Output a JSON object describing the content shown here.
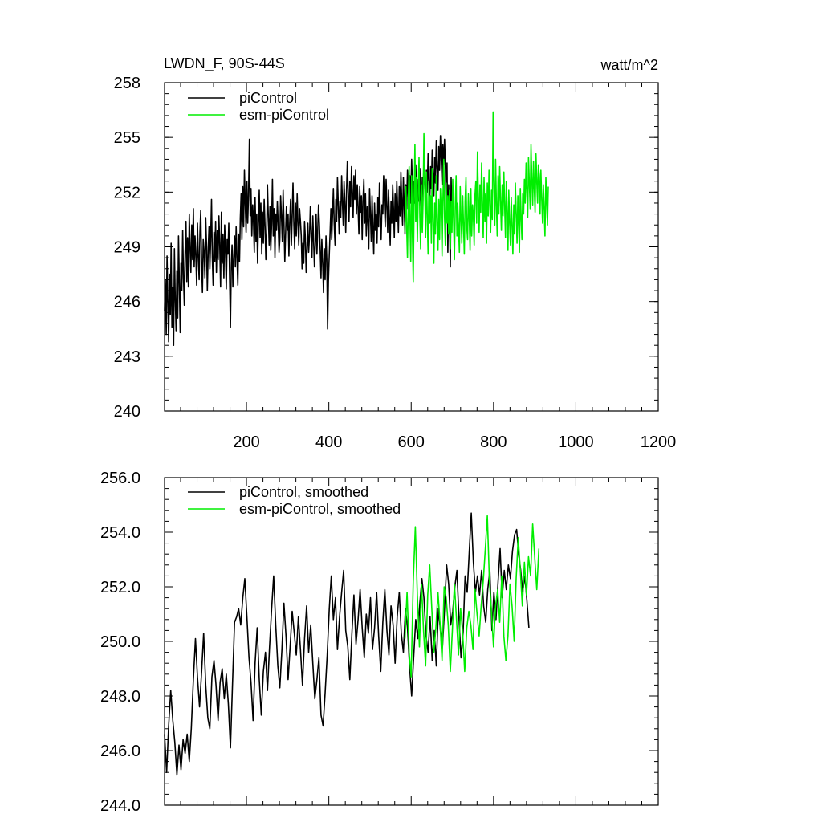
{
  "colors": {
    "piControl": "#000000",
    "esm": "#00ee00"
  },
  "chart_data": [
    {
      "type": "line",
      "title": "LWDN_F, 90S-44S",
      "units": "watt/m^2",
      "xlabel": "",
      "ylabel": "",
      "xlim": [
        1,
        1200
      ],
      "ylim": [
        240,
        258
      ],
      "yticks": [
        240,
        243,
        246,
        249,
        252,
        255,
        258
      ],
      "ytick_labels": [
        "240",
        "243",
        "246",
        "249",
        "252",
        "255",
        "258"
      ],
      "xticks": [
        200,
        400,
        600,
        800,
        1000,
        1200
      ],
      "xtick_labels": [
        "200",
        "400",
        "600",
        "800",
        "1000",
        "1200"
      ],
      "legend_position": "top-left",
      "series": [
        {
          "name": "piControl",
          "color_key": "piControl",
          "x_start": 1,
          "x_step": 2,
          "values": [
            245.5,
            247.2,
            244.2,
            248.5,
            246.1,
            243.8,
            247.5,
            245.3,
            249.2,
            244.6,
            246.8,
            243.6,
            248.9,
            246.2,
            244.4,
            247.7,
            245.1,
            249.6,
            246.9,
            244.3,
            248.1,
            246.6,
            249.9,
            247.3,
            245.8,
            248.7,
            250.4,
            247.1,
            249.5,
            246.8,
            250.8,
            248.9,
            247.6,
            250.2,
            248.3,
            251.1,
            247.9,
            249.6,
            248.5,
            246.9,
            250.3,
            248.4,
            247.2,
            249.8,
            251.0,
            248.1,
            246.5,
            249.4,
            248.8,
            247.3,
            250.6,
            249.1,
            246.6,
            248.9,
            250.1,
            247.8,
            249.3,
            251.6,
            248.4,
            246.9,
            249.8,
            248.2,
            250.4,
            247.6,
            249.9,
            248.3,
            250.7,
            249.2,
            246.8,
            250.9,
            248.1,
            249.7,
            247.3,
            250.2,
            248.9,
            246.7,
            249.4,
            248.6,
            250.3,
            247.4,
            244.6,
            247.9,
            249.1,
            246.8,
            248.4,
            249.6,
            247.9,
            250.1,
            248.3,
            246.9,
            249.7,
            248.2,
            250.6,
            251.9,
            249.4,
            252.3,
            250.1,
            253.2,
            251.4,
            249.8,
            252.6,
            250.3,
            251.8,
            254.9,
            250.7,
            252.2,
            249.6,
            251.3,
            250.4,
            248.7,
            251.7,
            249.3,
            250.8,
            248.1,
            250.2,
            252.1,
            249.5,
            251.4,
            248.6,
            250.9,
            249.2,
            251.6,
            250.1,
            248.3,
            249.8,
            252.4,
            250.6,
            249.1,
            251.2,
            248.8,
            250.3,
            252.7,
            249.6,
            251.1,
            248.4,
            250.8,
            249.9,
            251.5,
            250.2,
            248.7,
            249.4,
            251.8,
            250.6,
            249.3,
            252.1,
            250.4,
            248.2,
            249.7,
            251.2,
            249.9,
            250.8,
            248.5,
            250.3,
            251.6,
            249.1,
            250.7,
            252.5,
            250.2,
            248.9,
            251.4,
            249.6,
            251.9,
            250.3,
            249.1,
            251.1,
            250.4,
            249.6,
            247.8,
            249.2,
            248.1,
            250.4,
            249.5,
            247.6,
            248.9,
            250.3,
            248.7,
            249.6,
            251.2,
            249.8,
            248.4,
            250.7,
            249.3,
            247.9,
            249.1,
            250.8,
            248.6,
            249.9,
            251.3,
            250.2,
            248.8,
            247.3,
            249.4,
            248.1,
            246.5,
            248.9,
            247.2,
            249.6,
            248.3,
            244.5,
            247.1,
            248.6,
            249.8,
            251.1,
            249.4,
            250.8,
            252.2,
            250.3,
            249.1,
            251.6,
            250.4,
            252.8,
            251.2,
            249.7,
            251.5,
            250.6,
            252.9,
            251.4,
            250.2,
            252.6,
            251.3,
            249.8,
            252.1,
            253.7,
            251.8,
            250.4,
            252.6,
            251.2,
            253.4,
            251.9,
            250.6,
            252.9,
            251.6,
            253.2,
            250.8,
            252.4,
            251.1,
            249.7,
            252.3,
            250.9,
            251.8,
            249.4,
            251.5,
            252.7,
            250.3,
            251.9,
            249.6,
            251.2,
            250.4,
            248.9,
            252.2,
            250.7,
            249.3,
            251.8,
            250.2,
            248.6,
            251.4,
            249.9,
            250.8,
            249.2,
            251.7,
            250.1,
            252.5,
            250.6,
            249.4,
            251.3,
            250.8,
            252.9,
            251.4,
            250.1,
            252.7,
            251.2,
            249.8,
            252.1,
            250.6,
            249.1,
            251.5,
            250.3,
            252.4,
            251.1,
            249.5,
            251.9,
            250.4,
            252.6,
            251.2,
            249.8,
            252.3,
            250.7,
            253.1,
            251.6,
            250.2,
            252.8,
            251.3,
            249.7,
            252.4,
            251.1,
            253.2,
            251.8,
            250.5,
            252.9,
            251.4,
            253.8,
            252.2,
            250.9,
            252.6,
            251.4,
            253.5,
            252.1,
            250.8,
            252.7,
            251.5,
            253.3,
            252.0,
            250.6,
            252.8,
            251.9,
            253.6,
            252.4,
            251.1,
            253.2,
            252.0,
            254.1,
            252.6,
            251.3,
            253.4,
            252.2,
            254.3,
            253.1,
            251.8,
            253.9,
            252.5,
            254.8,
            253.3,
            252.1,
            254.5,
            253.2,
            255.1,
            253.8,
            252.4,
            254.6,
            253.5,
            254.9,
            253.4,
            251.2,
            253.6,
            248.7,
            252.4,
            250.9,
            247.9,
            252.8,
            250.3
          ]
        },
        {
          "name": "esm-piControl",
          "color_key": "esm",
          "x_start": 585,
          "x_step": 2,
          "values": [
            249.8,
            252.3,
            250.1,
            248.4,
            251.7,
            253.4,
            250.6,
            248.2,
            252.9,
            249.6,
            247.1,
            251.2,
            254.6,
            250.4,
            252.8,
            249.3,
            251.9,
            253.9,
            250.7,
            248.9,
            252.4,
            249.8,
            251.6,
            255.2,
            252.1,
            249.5,
            253.1,
            250.8,
            248.6,
            252.6,
            250.3,
            251.8,
            249.2,
            253.3,
            250.5,
            248.1,
            251.4,
            249.7,
            252.9,
            250.2,
            248.8,
            251.6,
            249.4,
            252.2,
            250.9,
            248.5,
            251.3,
            253.8,
            250.6,
            249.1,
            252.5,
            250.3,
            251.8,
            249.7,
            252.1,
            248.9,
            251.5,
            249.8,
            252.7,
            250.4,
            248.3,
            251.1,
            252.9,
            249.6,
            251.4,
            250.1,
            248.7,
            252.3,
            250.6,
            249.2,
            251.8,
            250.3,
            248.6,
            251.5,
            252.8,
            250.1,
            249.4,
            251.9,
            250.5,
            248.8,
            252.2,
            249.6,
            251.3,
            250.7,
            249.1,
            251.8,
            252.6,
            250.3,
            254.2,
            251.7,
            249.8,
            252.4,
            250.9,
            253.6,
            251.2,
            249.5,
            252.8,
            250.4,
            251.9,
            249.2,
            252.5,
            250.7,
            253.2,
            251.4,
            249.8,
            252.1,
            250.5,
            256.4,
            252.6,
            250.2,
            253.8,
            251.3,
            249.6,
            252.9,
            250.8,
            253.4,
            251.6,
            249.9,
            252.4,
            250.7,
            253.1,
            251.2,
            249.5,
            252.6,
            250.9,
            248.8,
            252.1,
            250.4,
            249.1,
            251.7,
            250.2,
            248.6,
            251.3,
            249.7,
            252.5,
            250.9,
            249.2,
            251.8,
            250.3,
            248.7,
            252.2,
            250.6,
            249.4,
            251.9,
            250.8,
            252.7,
            251.4,
            253.6,
            252.1,
            250.6,
            253.9,
            252.4,
            251.1,
            254.6,
            252.8,
            251.3,
            253.7,
            252.2,
            250.9,
            254.1,
            252.6,
            251.4,
            253.5,
            252.9,
            250.8,
            253.2,
            251.7,
            250.3,
            252.4,
            251.1,
            249.6,
            252.8,
            251.5,
            250.2,
            252.3
          ]
        }
      ]
    },
    {
      "type": "line",
      "title": "",
      "xlabel": "",
      "ylabel": "",
      "xlim": [
        1,
        1200
      ],
      "ylim": [
        244,
        256
      ],
      "yticks": [
        244,
        246,
        248,
        250,
        252,
        254,
        256
      ],
      "ytick_labels": [
        "244.0",
        "246.0",
        "248.0",
        "250.0",
        "252.0",
        "254.0",
        "256.0"
      ],
      "xticks": [
        200,
        400,
        600,
        800,
        1000,
        1200
      ],
      "xtick_labels": [],
      "legend_position": "top-left",
      "series": [
        {
          "name": "piControl, smoothed",
          "color_key": "piControl",
          "x_start": 1,
          "x_step": 5,
          "values": [
            246.6,
            245.2,
            246.9,
            248.2,
            247.1,
            246.3,
            245.1,
            246.2,
            245.3,
            246.4,
            245.9,
            246.6,
            245.6,
            246.8,
            248.6,
            250.1,
            248.7,
            247.6,
            248.9,
            250.3,
            248.4,
            247.2,
            246.8,
            248.7,
            249.3,
            248.4,
            247.1,
            248.5,
            249.0,
            247.9,
            248.8,
            247.7,
            246.1,
            248.4,
            250.7,
            250.9,
            251.2,
            250.6,
            251.6,
            252.3,
            250.9,
            249.4,
            248.5,
            247.1,
            249.2,
            250.5,
            248.6,
            247.3,
            248.9,
            249.6,
            248.2,
            249.8,
            251.2,
            252.4,
            250.6,
            249.1,
            248.3,
            249.7,
            251.4,
            250.2,
            248.6,
            249.8,
            251.1,
            250.3,
            249.5,
            250.9,
            249.7,
            248.4,
            250.1,
            251.3,
            249.6,
            250.6,
            249.2,
            247.9,
            248.6,
            249.4,
            247.3,
            246.9,
            248.1,
            249.5,
            251.2,
            252.4,
            250.8,
            251.6,
            249.7,
            250.9,
            251.8,
            252.6,
            250.4,
            249.8,
            248.6,
            250.3,
            251.7,
            249.9,
            250.8,
            251.9,
            250.5,
            249.4,
            251.0,
            250.3,
            251.6,
            249.7,
            250.5,
            251.8,
            250.2,
            248.9,
            250.7,
            251.9,
            250.4,
            249.5,
            251.3,
            250.6,
            249.2,
            250.9,
            251.8,
            250.3,
            249.6,
            251.2,
            250.5,
            249.1,
            248.0,
            249.4,
            250.8,
            250.1,
            251.4,
            252.3,
            251.6,
            250.2,
            249.6,
            250.9,
            249.3,
            250.4,
            249.1,
            251.2,
            250.4,
            249.8,
            251.2,
            252.8,
            252.1,
            250.6,
            251.1,
            252.0,
            252.6,
            250.9,
            249.4,
            250.3,
            252.4,
            251.8,
            253.3,
            254.7,
            252.9,
            251.8,
            252.4,
            251.7,
            252.6,
            251.3,
            250.7,
            251.9,
            252.6,
            250.4,
            251.8,
            250.8,
            252.2,
            253.4,
            251.6,
            252.6,
            251.9,
            252.8,
            252.3,
            253.3,
            253.9,
            254.1,
            253.2,
            252.6,
            251.8,
            252.4,
            251.5,
            250.5
          ]
        },
        {
          "name": "esm-piControl, smoothed",
          "color_key": "esm",
          "x_start": 585,
          "x_step": 5,
          "values": [
            250.1,
            251.8,
            249.6,
            248.7,
            252.2,
            254.2,
            251.7,
            249.8,
            252.1,
            250.4,
            249.1,
            251.7,
            252.8,
            251.2,
            249.6,
            250.5,
            251.8,
            250.7,
            249.3,
            252.0,
            251.6,
            250.6,
            248.9,
            250.4,
            252.1,
            250.8,
            249.5,
            251.2,
            250.3,
            248.9,
            250.5,
            251.1,
            250.6,
            249.7,
            251.9,
            251.0,
            250.2,
            251.3,
            252.2,
            253.4,
            254.6,
            252.2,
            251.1,
            249.8,
            251.3,
            251.9,
            250.7,
            252.4,
            250.2,
            249.3,
            250.2,
            252.1,
            251.3,
            250.0,
            252.3,
            253.8,
            252.6,
            251.3,
            252.9,
            251.7,
            253.1,
            252.4,
            254.3,
            253.1,
            251.9,
            253.4
          ]
        }
      ]
    }
  ]
}
